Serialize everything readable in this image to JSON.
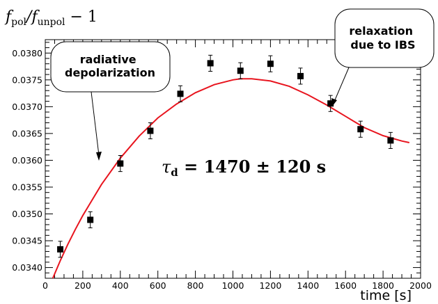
{
  "chart_data": {
    "type": "scatter",
    "ylabel": {
      "f1": "f",
      "sub1": "pol",
      "slash": "/",
      "f2": "f",
      "sub2": "unpol",
      "tail": " − 1"
    },
    "xlabel": "time [s]",
    "xlim": [
      0,
      2000
    ],
    "ylim": [
      0.0338,
      0.03825
    ],
    "xticks": [
      0,
      200,
      400,
      600,
      800,
      1000,
      1200,
      1400,
      1600,
      1800,
      2000
    ],
    "yticks": [
      0.034,
      0.0345,
      0.035,
      0.0355,
      0.036,
      0.0365,
      0.037,
      0.0375,
      0.038
    ],
    "ytick_labels": [
      "0.0340",
      "0.0345",
      "0.0350",
      "0.0355",
      "0.0360",
      "0.0365",
      "0.0370",
      "0.0375",
      "0.0380"
    ],
    "points": [
      {
        "x": 80,
        "y": 0.03434,
        "err": 0.00015
      },
      {
        "x": 240,
        "y": 0.03489,
        "err": 0.00015
      },
      {
        "x": 400,
        "y": 0.03594,
        "err": 0.00015
      },
      {
        "x": 560,
        "y": 0.03655,
        "err": 0.00015
      },
      {
        "x": 720,
        "y": 0.03724,
        "err": 0.00015
      },
      {
        "x": 880,
        "y": 0.03781,
        "err": 0.00015
      },
      {
        "x": 1040,
        "y": 0.03767,
        "err": 0.00015
      },
      {
        "x": 1200,
        "y": 0.0378,
        "err": 0.00015
      },
      {
        "x": 1360,
        "y": 0.03757,
        "err": 0.00015
      },
      {
        "x": 1520,
        "y": 0.03706,
        "err": 0.00015
      },
      {
        "x": 1680,
        "y": 0.03658,
        "err": 0.00015
      },
      {
        "x": 1840,
        "y": 0.03637,
        "err": 0.00015
      }
    ],
    "fit_curve": [
      [
        40,
        0.0338
      ],
      [
        80,
        0.03413
      ],
      [
        120,
        0.03443
      ],
      [
        160,
        0.03471
      ],
      [
        200,
        0.03497
      ],
      [
        300,
        0.03555
      ],
      [
        400,
        0.03604
      ],
      [
        500,
        0.03645
      ],
      [
        600,
        0.03679
      ],
      [
        700,
        0.03705
      ],
      [
        800,
        0.03726
      ],
      [
        900,
        0.03741
      ],
      [
        1000,
        0.0375
      ],
      [
        1040,
        0.03752
      ],
      [
        1100,
        0.03752
      ],
      [
        1200,
        0.03748
      ],
      [
        1300,
        0.03738
      ],
      [
        1400,
        0.03722
      ],
      [
        1500,
        0.03703
      ],
      [
        1600,
        0.03682
      ],
      [
        1700,
        0.03661
      ],
      [
        1800,
        0.03646
      ],
      [
        1900,
        0.03636
      ],
      [
        1940,
        0.03633
      ]
    ],
    "annotations": {
      "left_callout": [
        "radiative",
        "depolarization"
      ],
      "right_callout": [
        "relaxation",
        "due to IBS"
      ],
      "tau_symbol": "τ",
      "tau_sub": "d",
      "tau_rest": " = 1470 ± 120 s"
    },
    "colors": {
      "fit": "#e8141e",
      "points": "#000000",
      "axis": "#000000"
    }
  }
}
